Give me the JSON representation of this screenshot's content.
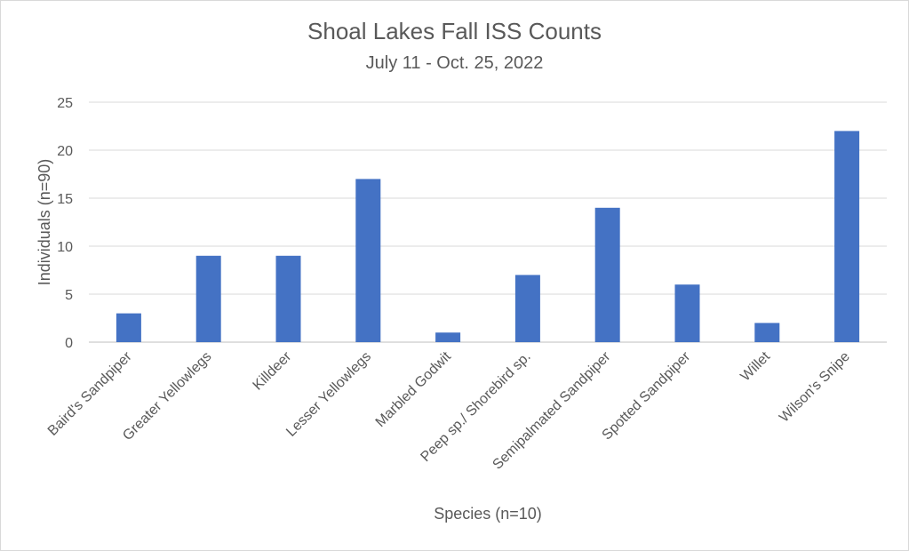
{
  "chart_data": {
    "type": "bar",
    "title": "Shoal Lakes Fall ISS Counts",
    "subtitle": "July 11 - Oct. 25, 2022",
    "xlabel": "Species (n=10)",
    "ylabel": "Individuals (n=90)",
    "categories": [
      "Baird's Sandpiper",
      "Greater Yellowlegs",
      "Killdeer",
      "Lesser Yellowlegs",
      "Marbled Godwit",
      "Peep sp./ Shorebird sp.",
      "Semipalmated Sandpiper",
      "Spotted Sandpiper",
      "Willet",
      "Wilson's Snipe"
    ],
    "values": [
      3,
      9,
      9,
      17,
      1,
      7,
      14,
      6,
      2,
      22
    ],
    "ylim": [
      0,
      25
    ],
    "yticks": [
      0,
      5,
      10,
      15,
      20,
      25
    ],
    "grid": true,
    "legend": "none",
    "colors": {
      "bar": "#4472c4",
      "grid": "#d9d9d9",
      "text": "#595959"
    }
  }
}
